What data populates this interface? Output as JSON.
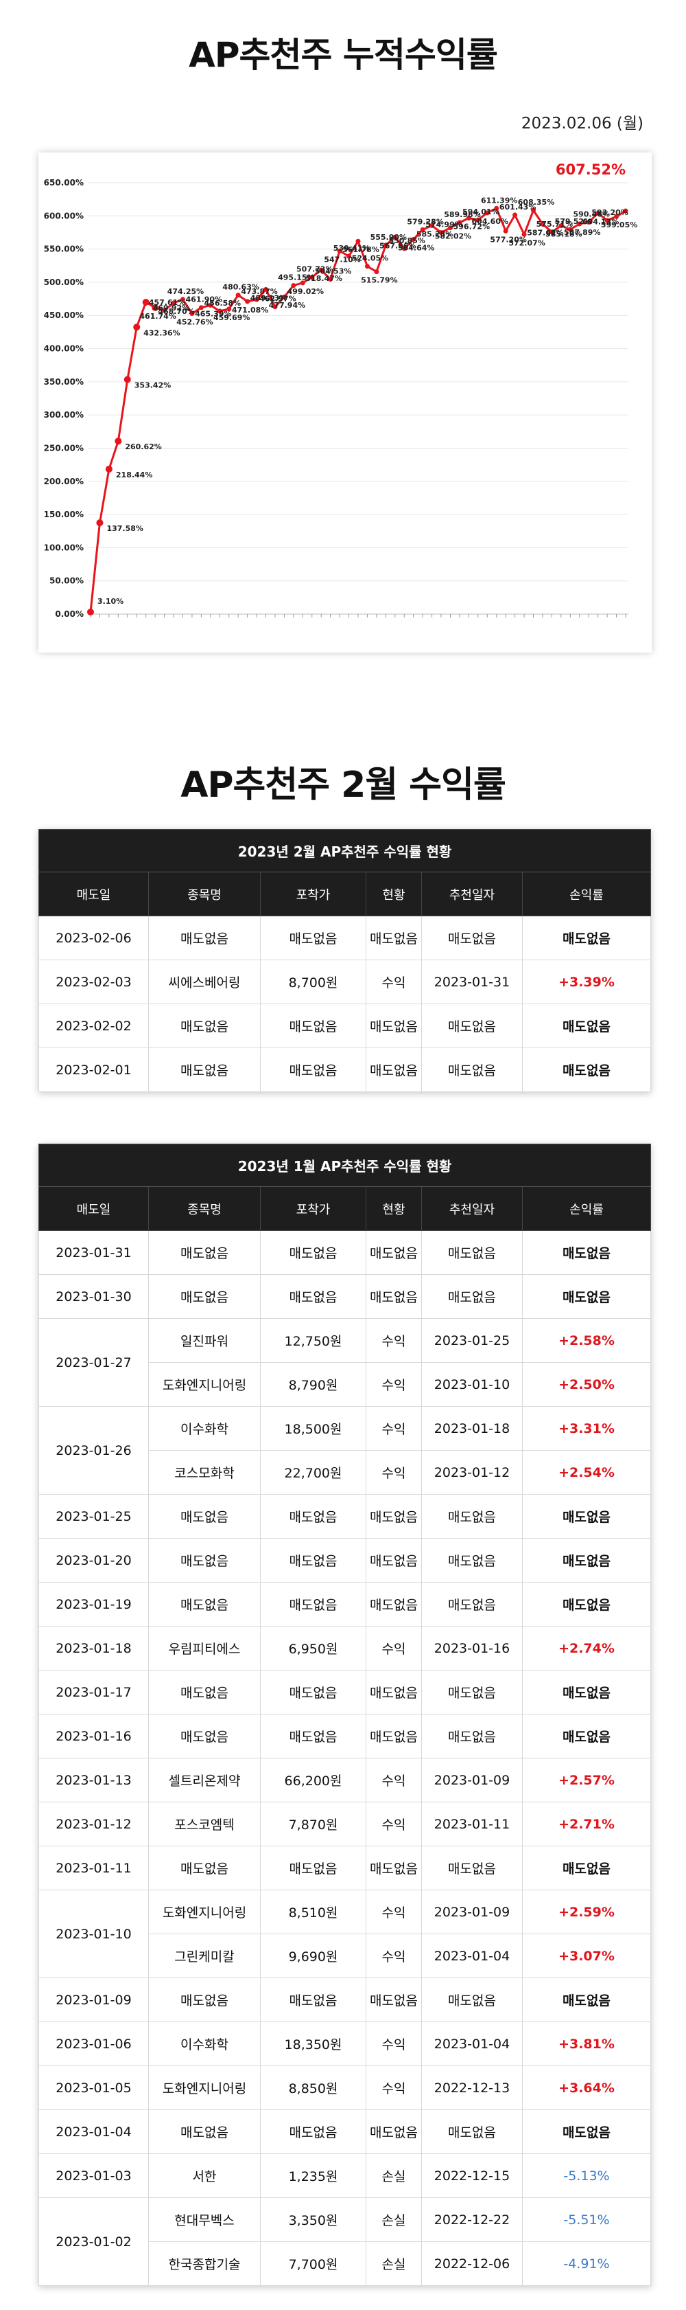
{
  "title": "AP추천주 누적수익률",
  "date": "2023.02.06 (월)",
  "chart_data": {
    "type": "line",
    "color": "#e8141c",
    "y_ticks": [
      "650.00%",
      "600.00%",
      "550.00%",
      "500.00%",
      "450.00%",
      "400.00%",
      "350.00%",
      "300.00%",
      "250.00%",
      "200.00%",
      "150.00%",
      "100.00%",
      "50.00%",
      "0.00%"
    ],
    "ylim": [
      0,
      650
    ],
    "y": [
      3.1,
      137.58,
      218.44,
      260.62,
      353.42,
      432.36,
      469.92,
      461.74,
      457.61,
      468.7,
      474.25,
      452.76,
      461.9,
      465.39,
      456.58,
      459.69,
      480.63,
      471.08,
      473.87,
      489.13,
      462.97,
      477.94,
      495.15,
      499.02,
      507.73,
      518.47,
      504.53,
      547.1,
      539.41,
      561.78,
      524.05,
      515.79,
      555.9,
      567.96,
      550.85,
      564.64,
      579.28,
      585.28,
      574.99,
      582.02,
      589.98,
      596.72,
      594.01,
      604.6,
      611.39,
      577.2,
      601.43,
      572.07,
      608.35,
      587.62,
      575.71,
      585.18,
      579.52,
      587.89,
      590.46,
      604.13,
      593.2,
      599.05,
      607.52
    ],
    "labels": [
      "3.10%",
      "137.58%",
      "218.44%",
      "260.62%",
      "353.42%",
      "432.36%",
      "469.92%",
      "461.74%",
      "457.61%",
      "468.70%",
      "474.25%",
      "452.76%",
      "461.90%",
      "465.39%",
      "456.58%",
      "459.69%",
      "480.63%",
      "471.08%",
      "473.87%",
      "489.13%",
      "462.97%",
      "477.94%",
      "495.15%",
      "499.02%",
      "507.73%",
      "518.47%",
      "504.53%",
      "547.10%",
      "539.41%",
      "561.78%",
      "524.05%",
      "515.79%",
      "555.90%",
      "567.96%",
      "550.85%",
      "564.64%",
      "579.28%",
      "585.28%",
      "574.99%",
      "582.02%",
      "589.98%",
      "596.72%",
      "594.01%",
      "604.60%",
      "611.39%",
      "577.20%",
      "601.43%",
      "572.07%",
      "608.35%",
      "587.62%",
      "575.71%",
      "585.18%",
      "579.52%",
      "587.89%",
      "590.46%",
      "604.13%",
      "593.20%",
      "599.05%",
      "607.52%"
    ],
    "last_label": "607.52%"
  },
  "feb": {
    "title": "AP추천주 2월 수익률",
    "caption": "2023년 2월 AP추천주 수익률 현황",
    "headers": [
      "매도일",
      "종목명",
      "포착가",
      "현황",
      "추천일자",
      "손익률"
    ],
    "rows": [
      {
        "d": "2023-02-06",
        "n": "매도없음",
        "p": "매도없음",
        "s": "매도없음",
        "r": "매도없음",
        "v": "매도없음"
      },
      {
        "d": "2023-02-03",
        "n": "씨에스베어링",
        "p": "8,700원",
        "s": "수익",
        "r": "2023-01-31",
        "v": "+3.39%"
      },
      {
        "d": "2023-02-02",
        "n": "매도없음",
        "p": "매도없음",
        "s": "매도없음",
        "r": "매도없음",
        "v": "매도없음"
      },
      {
        "d": "2023-02-01",
        "n": "매도없음",
        "p": "매도없음",
        "s": "매도없음",
        "r": "매도없음",
        "v": "매도없음"
      }
    ]
  },
  "jan": {
    "caption": "2023년 1월 AP추천주 수익률 현황",
    "headers": [
      "매도일",
      "종목명",
      "포착가",
      "현황",
      "추천일자",
      "손익률"
    ],
    "rows": [
      {
        "d": "2023-01-31",
        "n": "매도없음",
        "p": "매도없음",
        "s": "매도없음",
        "r": "매도없음",
        "v": "매도없음"
      },
      {
        "d": "2023-01-30",
        "n": "매도없음",
        "p": "매도없음",
        "s": "매도없음",
        "r": "매도없음",
        "v": "매도없음"
      },
      {
        "d": "2023-01-27",
        "n": "일진파워",
        "p": "12,750원",
        "s": "수익",
        "r": "2023-01-25",
        "v": "+2.58%"
      },
      {
        "d": "",
        "n": "도화엔지니어링",
        "p": "8,790원",
        "s": "수익",
        "r": "2023-01-10",
        "v": "+2.50%"
      },
      {
        "d": "2023-01-26",
        "n": "이수화학",
        "p": "18,500원",
        "s": "수익",
        "r": "2023-01-18",
        "v": "+3.31%"
      },
      {
        "d": "",
        "n": "코스모화학",
        "p": "22,700원",
        "s": "수익",
        "r": "2023-01-12",
        "v": "+2.54%"
      },
      {
        "d": "2023-01-25",
        "n": "매도없음",
        "p": "매도없음",
        "s": "매도없음",
        "r": "매도없음",
        "v": "매도없음"
      },
      {
        "d": "2023-01-20",
        "n": "매도없음",
        "p": "매도없음",
        "s": "매도없음",
        "r": "매도없음",
        "v": "매도없음"
      },
      {
        "d": "2023-01-19",
        "n": "매도없음",
        "p": "매도없음",
        "s": "매도없음",
        "r": "매도없음",
        "v": "매도없음"
      },
      {
        "d": "2023-01-18",
        "n": "우림피티에스",
        "p": "6,950원",
        "s": "수익",
        "r": "2023-01-16",
        "v": "+2.74%"
      },
      {
        "d": "2023-01-17",
        "n": "매도없음",
        "p": "매도없음",
        "s": "매도없음",
        "r": "매도없음",
        "v": "매도없음"
      },
      {
        "d": "2023-01-16",
        "n": "매도없음",
        "p": "매도없음",
        "s": "매도없음",
        "r": "매도없음",
        "v": "매도없음"
      },
      {
        "d": "2023-01-13",
        "n": "셀트리온제약",
        "p": "66,200원",
        "s": "수익",
        "r": "2023-01-09",
        "v": "+2.57%"
      },
      {
        "d": "2023-01-12",
        "n": "포스코엠텍",
        "p": "7,870원",
        "s": "수익",
        "r": "2023-01-11",
        "v": "+2.71%"
      },
      {
        "d": "2023-01-11",
        "n": "매도없음",
        "p": "매도없음",
        "s": "매도없음",
        "r": "매도없음",
        "v": "매도없음"
      },
      {
        "d": "2023-01-10",
        "n": "도화엔지니어링",
        "p": "8,510원",
        "s": "수익",
        "r": "2023-01-09",
        "v": "+2.59%"
      },
      {
        "d": "",
        "n": "그린케미칼",
        "p": "9,690원",
        "s": "수익",
        "r": "2023-01-04",
        "v": "+3.07%"
      },
      {
        "d": "2023-01-09",
        "n": "매도없음",
        "p": "매도없음",
        "s": "매도없음",
        "r": "매도없음",
        "v": "매도없음"
      },
      {
        "d": "2023-01-06",
        "n": "이수화학",
        "p": "18,350원",
        "s": "수익",
        "r": "2023-01-04",
        "v": "+3.81%"
      },
      {
        "d": "2023-01-05",
        "n": "도화엔지니어링",
        "p": "8,850원",
        "s": "수익",
        "r": "2022-12-13",
        "v": "+3.64%"
      },
      {
        "d": "2023-01-04",
        "n": "매도없음",
        "p": "매도없음",
        "s": "매도없음",
        "r": "매도없음",
        "v": "매도없음"
      },
      {
        "d": "2023-01-03",
        "n": "서한",
        "p": "1,235원",
        "s": "손실",
        "r": "2022-12-15",
        "v": "-5.13%"
      },
      {
        "d": "2023-01-02",
        "n": "현대무벡스",
        "p": "3,350원",
        "s": "손실",
        "r": "2022-12-22",
        "v": "-5.51%"
      },
      {
        "d": "",
        "n": "한국종합기술",
        "p": "7,700원",
        "s": "손실",
        "r": "2022-12-06",
        "v": "-4.91%"
      }
    ]
  }
}
